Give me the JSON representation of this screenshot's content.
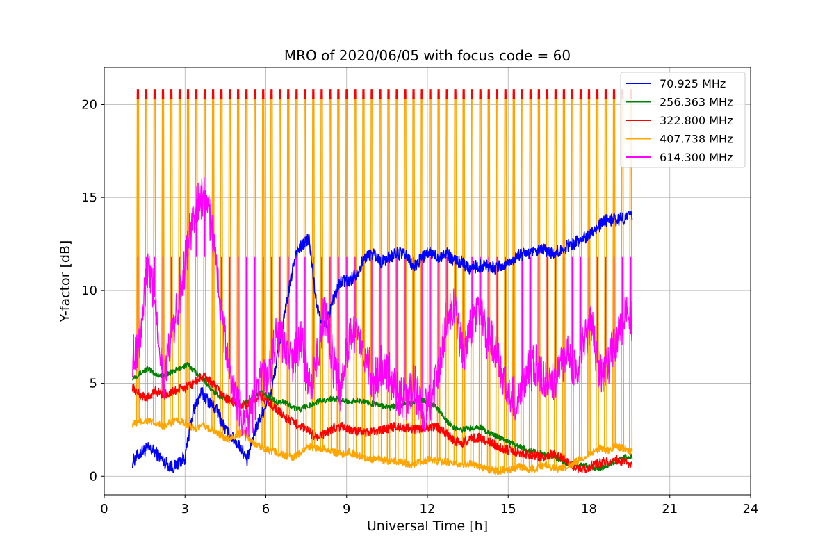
{
  "chart_data": {
    "type": "line",
    "title": "MRO of 2020/06/05 with focus code = 60",
    "xlabel": "Universal Time [h]",
    "ylabel": "Y-factor [dB]",
    "xlim": [
      0,
      24
    ],
    "ylim": [
      -1,
      22
    ],
    "xticks": [
      0,
      3,
      6,
      9,
      12,
      15,
      18,
      21,
      24
    ],
    "yticks": [
      0,
      5,
      10,
      15,
      20
    ],
    "grid": true,
    "legend_position": "top-right",
    "series": [
      {
        "name": "  70.925 MHz",
        "color": "#0000ff",
        "x": [
          1.05,
          1.3,
          1.6,
          1.9,
          2.2,
          2.4,
          2.6,
          2.8,
          3.0,
          3.3,
          3.6,
          3.9,
          4.2,
          4.5,
          4.8,
          5.1,
          5.3,
          5.6,
          5.9,
          6.2,
          6.5,
          6.8,
          7.1,
          7.4,
          7.6,
          7.9,
          8.2,
          8.5,
          8.8,
          9.1,
          9.4,
          9.7,
          10.0,
          10.3,
          10.6,
          10.9,
          11.2,
          11.5,
          11.8,
          12.1,
          12.4,
          12.7,
          13.0,
          13.3,
          13.6,
          13.9,
          14.2,
          14.5,
          14.8,
          15.1,
          15.4,
          15.7,
          16.0,
          16.3,
          16.6,
          16.9,
          17.2,
          17.5,
          17.8,
          18.1,
          18.4,
          18.7,
          19.0,
          19.3,
          19.6
        ],
        "y": [
          0.8,
          1.2,
          1.5,
          1.3,
          0.8,
          0.6,
          0.5,
          0.8,
          1.0,
          3.5,
          4.5,
          4.0,
          3.5,
          2.5,
          2.0,
          1.5,
          0.8,
          2.5,
          3.5,
          4.5,
          7.0,
          9.5,
          12.0,
          12.5,
          12.8,
          9.0,
          8.0,
          9.5,
          10.5,
          10.5,
          11.0,
          11.8,
          12.0,
          11.5,
          11.8,
          12.0,
          11.9,
          11.2,
          11.8,
          12.0,
          11.8,
          12.0,
          11.6,
          11.5,
          11.2,
          11.3,
          11.4,
          11.2,
          11.3,
          11.6,
          11.9,
          12.0,
          12.0,
          12.2,
          12.0,
          12.1,
          12.4,
          12.6,
          12.8,
          13.2,
          13.5,
          13.8,
          13.8,
          13.9,
          14.0
        ]
      },
      {
        "name": "256.363 MHz",
        "color": "#008000",
        "x": [
          1.05,
          1.3,
          1.6,
          1.9,
          2.2,
          2.5,
          2.8,
          3.1,
          3.4,
          3.7,
          4.0,
          4.3,
          4.6,
          4.9,
          5.2,
          5.5,
          5.8,
          6.1,
          6.4,
          6.7,
          7.0,
          7.3,
          7.6,
          7.9,
          8.2,
          8.5,
          8.8,
          9.1,
          9.4,
          9.7,
          10.0,
          10.3,
          10.6,
          10.9,
          11.2,
          11.5,
          11.8,
          12.1,
          12.4,
          12.7,
          13.0,
          13.3,
          13.6,
          13.9,
          14.2,
          14.5,
          14.8,
          15.1,
          15.4,
          15.7,
          16.0,
          16.3,
          16.6,
          16.9,
          17.2,
          17.5,
          17.8,
          18.1,
          18.4,
          18.7,
          19.0,
          19.3,
          19.6
        ],
        "y": [
          5.3,
          5.5,
          5.8,
          5.5,
          5.4,
          5.6,
          5.8,
          6.0,
          5.6,
          5.2,
          4.6,
          4.3,
          4.2,
          4.0,
          3.9,
          4.2,
          4.5,
          4.3,
          4.0,
          4.0,
          3.7,
          3.6,
          3.8,
          4.0,
          4.1,
          4.2,
          4.1,
          4.0,
          4.1,
          4.0,
          3.9,
          3.8,
          3.7,
          3.8,
          3.9,
          4.0,
          4.1,
          4.0,
          3.6,
          3.0,
          2.6,
          2.5,
          2.6,
          2.7,
          2.4,
          2.2,
          2.0,
          1.8,
          1.6,
          1.4,
          1.3,
          1.2,
          1.1,
          0.9,
          0.7,
          0.5,
          0.6,
          0.5,
          0.4,
          0.6,
          0.8,
          1.0,
          1.1
        ]
      },
      {
        "name": "322.800 MHz",
        "color": "#ff0000",
        "x": [
          1.05,
          1.3,
          1.6,
          1.9,
          2.2,
          2.5,
          2.8,
          3.1,
          3.4,
          3.7,
          4.0,
          4.3,
          4.6,
          4.9,
          5.2,
          5.5,
          5.8,
          6.1,
          6.4,
          6.7,
          7.0,
          7.3,
          7.6,
          7.9,
          8.2,
          8.5,
          8.8,
          9.1,
          9.4,
          9.7,
          10.0,
          10.3,
          10.6,
          10.9,
          11.2,
          11.5,
          11.8,
          12.1,
          12.4,
          12.7,
          13.0,
          13.3,
          13.6,
          13.9,
          14.2,
          14.5,
          14.8,
          15.1,
          15.4,
          15.7,
          16.0,
          16.3,
          16.6,
          16.9,
          17.2,
          17.5,
          17.8,
          18.1,
          18.4,
          18.7,
          19.0,
          19.3,
          19.6
        ],
        "y": [
          4.8,
          4.4,
          4.2,
          4.6,
          4.4,
          4.5,
          4.7,
          4.8,
          5.1,
          5.4,
          5.0,
          4.5,
          4.1,
          3.9,
          3.8,
          4.0,
          4.3,
          4.0,
          3.6,
          3.2,
          2.9,
          2.7,
          2.4,
          2.1,
          2.3,
          2.6,
          2.7,
          2.5,
          2.4,
          2.3,
          2.4,
          2.5,
          2.6,
          2.7,
          2.6,
          2.5,
          2.6,
          2.7,
          2.6,
          2.3,
          1.9,
          1.8,
          2.0,
          2.1,
          1.9,
          1.7,
          1.5,
          1.4,
          1.3,
          1.2,
          1.1,
          1.0,
          1.2,
          1.1,
          0.8,
          0.5,
          0.3,
          0.6,
          0.7,
          0.8,
          0.9,
          0.8,
          0.5
        ]
      },
      {
        "name": "407.738 MHz",
        "color": "#ffa500",
        "x": [
          1.05,
          1.3,
          1.6,
          1.9,
          2.2,
          2.5,
          2.8,
          3.1,
          3.4,
          3.7,
          4.0,
          4.3,
          4.6,
          4.9,
          5.2,
          5.5,
          5.8,
          6.1,
          6.4,
          6.7,
          7.0,
          7.3,
          7.6,
          7.9,
          8.2,
          8.5,
          8.8,
          9.1,
          9.4,
          9.7,
          10.0,
          10.3,
          10.6,
          10.9,
          11.2,
          11.5,
          11.8,
          12.1,
          12.4,
          12.7,
          13.0,
          13.3,
          13.6,
          13.9,
          14.2,
          14.5,
          14.8,
          15.1,
          15.4,
          15.7,
          16.0,
          16.3,
          16.6,
          16.9,
          17.2,
          17.5,
          17.8,
          18.1,
          18.4,
          18.7,
          19.0,
          19.3,
          19.6
        ],
        "y": [
          2.8,
          2.9,
          3.0,
          2.8,
          2.7,
          2.9,
          3.0,
          2.7,
          2.6,
          2.7,
          2.5,
          2.2,
          2.0,
          2.2,
          2.4,
          1.8,
          1.6,
          1.4,
          1.3,
          1.1,
          1.0,
          1.3,
          1.6,
          1.5,
          1.5,
          1.3,
          1.2,
          1.3,
          1.1,
          1.0,
          0.9,
          0.9,
          0.8,
          0.8,
          0.7,
          0.6,
          0.8,
          0.9,
          0.8,
          0.8,
          0.6,
          0.6,
          0.7,
          0.5,
          0.4,
          0.3,
          0.3,
          0.4,
          0.5,
          0.4,
          0.4,
          0.6,
          0.5,
          0.4,
          0.5,
          0.8,
          1.0,
          1.3,
          1.5,
          1.4,
          1.6,
          1.5,
          1.3
        ]
      },
      {
        "name": "614.300 MHz",
        "color": "#ff00ff",
        "x": [
          1.05,
          1.3,
          1.6,
          1.9,
          2.2,
          2.5,
          2.8,
          3.1,
          3.4,
          3.7,
          4.0,
          4.3,
          4.6,
          4.9,
          5.2,
          5.5,
          5.8,
          6.1,
          6.4,
          6.7,
          7.0,
          7.3,
          7.6,
          7.9,
          8.2,
          8.5,
          8.8,
          9.1,
          9.4,
          9.7,
          10.0,
          10.3,
          10.6,
          10.9,
          11.2,
          11.5,
          11.8,
          12.1,
          12.4,
          12.7,
          13.0,
          13.3,
          13.6,
          13.9,
          14.2,
          14.5,
          14.8,
          15.1,
          15.4,
          15.7,
          16.0,
          16.3,
          16.6,
          16.9,
          17.2,
          17.5,
          17.8,
          18.1,
          18.4,
          18.7,
          19.0,
          19.3,
          19.6
        ],
        "y": [
          6.5,
          7.0,
          11.0,
          9.5,
          5.0,
          7.5,
          9.5,
          12.5,
          14.5,
          15.0,
          13.5,
          9.5,
          6.0,
          4.0,
          3.0,
          3.5,
          5.0,
          5.5,
          7.5,
          7.0,
          6.0,
          7.5,
          4.5,
          6.5,
          9.0,
          6.0,
          4.5,
          7.5,
          8.0,
          6.5,
          5.0,
          6.0,
          5.5,
          4.5,
          4.0,
          5.0,
          3.5,
          4.0,
          5.5,
          8.5,
          9.5,
          6.5,
          8.0,
          9.0,
          7.5,
          7.0,
          5.0,
          4.5,
          4.0,
          5.5,
          6.0,
          5.5,
          5.0,
          5.5,
          6.5,
          5.5,
          7.5,
          8.0,
          5.5,
          6.0,
          7.5,
          8.5,
          8.5
        ]
      }
    ],
    "calibration_spikes": {
      "start_hours": 1.25,
      "end_hours": 19.55,
      "count": 60,
      "red_peak_db": 20.8,
      "orange_peak_db": 20.3,
      "magenta_level_db": 11.8
    }
  }
}
